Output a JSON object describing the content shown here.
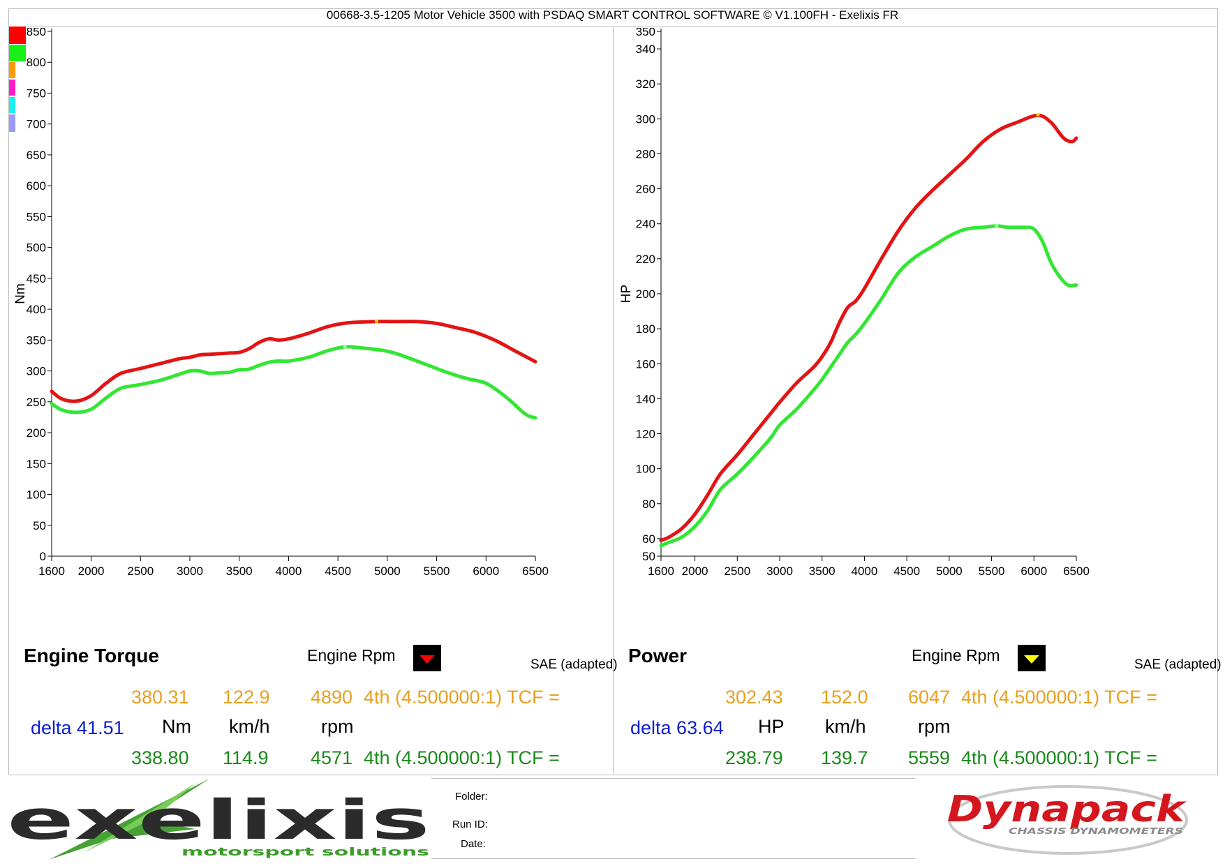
{
  "title": "00668-3.5-1205 Motor Vehicle 3500 with PSDAQ SMART CONTROL SOFTWARE © V1.100FH - Exelixis FR",
  "legend_swatch_colors": [
    "#ff0000",
    "#19f019",
    "#ff9900",
    "#ff1acc",
    "#19f0f0",
    "#9999ff"
  ],
  "left_panel": {
    "name": "Engine Torque",
    "xlabel": "Engine Rpm",
    "ylabel": "Nm",
    "correction": "SAE (adapted)",
    "marker_color": "#ff0000",
    "row1": {
      "value": "380.31",
      "speed": "122.9",
      "rpm": "4890",
      "gear": "4th (4.500000:1) TCF ="
    },
    "row2": {
      "delta": "delta 41.51",
      "unit": "Nm",
      "speed_unit": "km/h",
      "rpm_unit": "rpm"
    },
    "row3": {
      "value": "338.80",
      "speed": "114.9",
      "rpm": "4571",
      "gear": "4th (4.500000:1) TCF ="
    }
  },
  "right_panel": {
    "name": "Power",
    "xlabel": "Engine Rpm",
    "ylabel": "HP",
    "correction": "SAE (adapted)",
    "marker_color": "#ffff00",
    "row1": {
      "value": "302.43",
      "speed": "152.0",
      "rpm": "6047",
      "gear": "4th (4.500000:1) TCF ="
    },
    "row2": {
      "delta": "delta 63.64",
      "unit": "HP",
      "speed_unit": "km/h",
      "rpm_unit": "rpm"
    },
    "row3": {
      "value": "238.79",
      "speed": "139.7",
      "rpm": "5559",
      "gear": "4th (4.500000:1) TCF ="
    }
  },
  "footer": {
    "logo_left": "exelixis",
    "logo_left_sub": "motorsport solutions",
    "folder_label": "Folder:",
    "runid_label": "Run ID:",
    "date_label": "Date:",
    "logo_right": "Dynapack",
    "logo_right_sub": "CHASSIS DYNAMOMETERS"
  },
  "chart_data": [
    {
      "type": "line",
      "xlabel": "Engine Rpm",
      "ylabel": "Nm",
      "xlim": [
        1600,
        6500
      ],
      "ylim": [
        0,
        850
      ],
      "xticks": [
        1600,
        2000,
        2500,
        3000,
        3500,
        4000,
        4500,
        5000,
        5500,
        6000,
        6500
      ],
      "yticks": [
        0,
        50,
        100,
        150,
        200,
        250,
        300,
        350,
        400,
        450,
        500,
        550,
        600,
        650,
        700,
        750,
        800,
        850
      ],
      "grid": false,
      "series": [
        {
          "color": "#e31414",
          "x": [
            1600,
            1700,
            1850,
            2000,
            2150,
            2300,
            2500,
            2700,
            2900,
            3000,
            3100,
            3200,
            3300,
            3400,
            3500,
            3600,
            3700,
            3800,
            3900,
            4000,
            4200,
            4400,
            4600,
            4890,
            5100,
            5300,
            5500,
            5700,
            5900,
            6100,
            6300,
            6500
          ],
          "y": [
            267,
            255,
            251,
            260,
            280,
            296,
            304,
            312,
            320,
            322,
            326,
            327,
            328,
            329,
            330,
            336,
            346,
            352,
            350,
            352,
            361,
            372,
            378,
            380,
            380,
            380,
            377,
            370,
            362,
            349,
            332,
            315
          ]
        },
        {
          "color": "#33e633",
          "x": [
            1600,
            1700,
            1850,
            2000,
            2150,
            2300,
            2500,
            2700,
            2900,
            3000,
            3100,
            3200,
            3300,
            3400,
            3500,
            3600,
            3700,
            3800,
            3900,
            4000,
            4200,
            4400,
            4571,
            4700,
            5000,
            5200,
            5400,
            5600,
            5800,
            6000,
            6200,
            6400,
            6500
          ],
          "y": [
            247,
            237,
            233,
            238,
            256,
            272,
            278,
            285,
            295,
            300,
            300,
            296,
            297,
            298,
            302,
            303,
            309,
            314,
            316,
            316,
            322,
            333,
            339,
            338,
            332,
            322,
            310,
            298,
            288,
            280,
            258,
            230,
            224
          ]
        }
      ]
    },
    {
      "type": "line",
      "xlabel": "Engine Rpm",
      "ylabel": "HP",
      "xlim": [
        1600,
        6500
      ],
      "ylim": [
        50,
        350
      ],
      "xticks": [
        1600,
        2000,
        2500,
        3000,
        3500,
        4000,
        4500,
        5000,
        5500,
        6000,
        6500
      ],
      "yticks": [
        50,
        60,
        80,
        100,
        120,
        140,
        160,
        180,
        200,
        220,
        240,
        260,
        280,
        300,
        320,
        340,
        350
      ],
      "grid": false,
      "series": [
        {
          "color": "#e31414",
          "x": [
            1600,
            1700,
            1850,
            2000,
            2150,
            2300,
            2500,
            2700,
            2900,
            3000,
            3200,
            3400,
            3500,
            3600,
            3700,
            3800,
            3900,
            4000,
            4200,
            4400,
            4600,
            4800,
            5000,
            5200,
            5400,
            5600,
            5800,
            6047,
            6200,
            6350,
            6450,
            6500
          ],
          "y": [
            59,
            61,
            66,
            74,
            85,
            97,
            108,
            120,
            132,
            138,
            149,
            158,
            164,
            172,
            183,
            192,
            196,
            203,
            220,
            236,
            249,
            259,
            268,
            277,
            287,
            294,
            298,
            302,
            298,
            289,
            287,
            289
          ]
        },
        {
          "color": "#33e633",
          "x": [
            1600,
            1700,
            1850,
            2000,
            2150,
            2300,
            2500,
            2700,
            2900,
            3000,
            3200,
            3400,
            3500,
            3600,
            3700,
            3800,
            3900,
            4000,
            4200,
            4400,
            4600,
            4800,
            5000,
            5200,
            5400,
            5559,
            5700,
            5900,
            6000,
            6100,
            6200,
            6300,
            6400,
            6500
          ],
          "y": [
            56,
            58,
            61,
            67,
            76,
            88,
            97,
            107,
            118,
            125,
            134,
            145,
            151,
            158,
            165,
            172,
            177,
            183,
            197,
            212,
            221,
            227,
            233,
            237,
            238,
            238.8,
            238,
            238,
            237,
            230,
            218,
            210,
            205,
            205
          ]
        }
      ]
    }
  ]
}
